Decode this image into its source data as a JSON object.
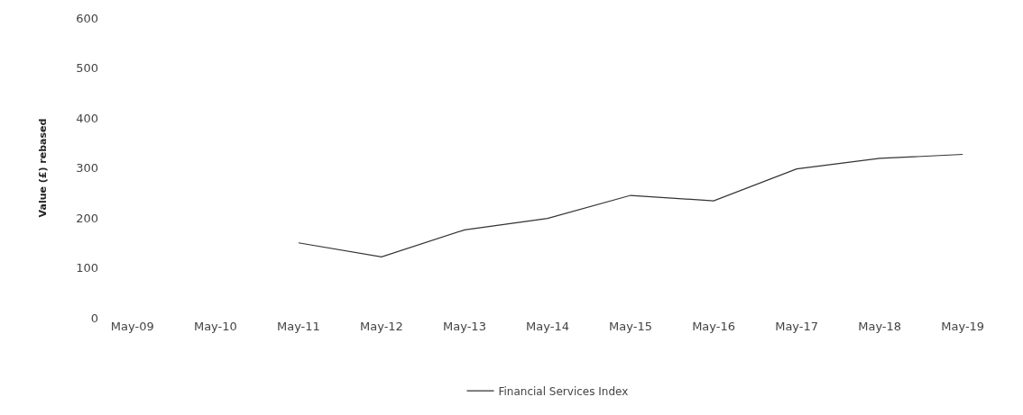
{
  "chart_data": {
    "type": "line",
    "ylabel": "Value (£) rebased",
    "categories": [
      "May-09",
      "May-10",
      "May-11",
      "May-12",
      "May-13",
      "May-14",
      "May-15",
      "May-16",
      "May-17",
      "May-18",
      "May-19"
    ],
    "series": [
      {
        "name": "Financial Services Index",
        "color": "#333333",
        "values": [
          null,
          null,
          150,
          122,
          176,
          199,
          245,
          234,
          298,
          319,
          327
        ]
      }
    ],
    "ylim": [
      0,
      600
    ],
    "yticks": [
      0,
      100,
      200,
      300,
      400,
      500,
      600
    ],
    "grid": false,
    "legend": "bottom",
    "marker": "none",
    "line_style": "solid"
  }
}
